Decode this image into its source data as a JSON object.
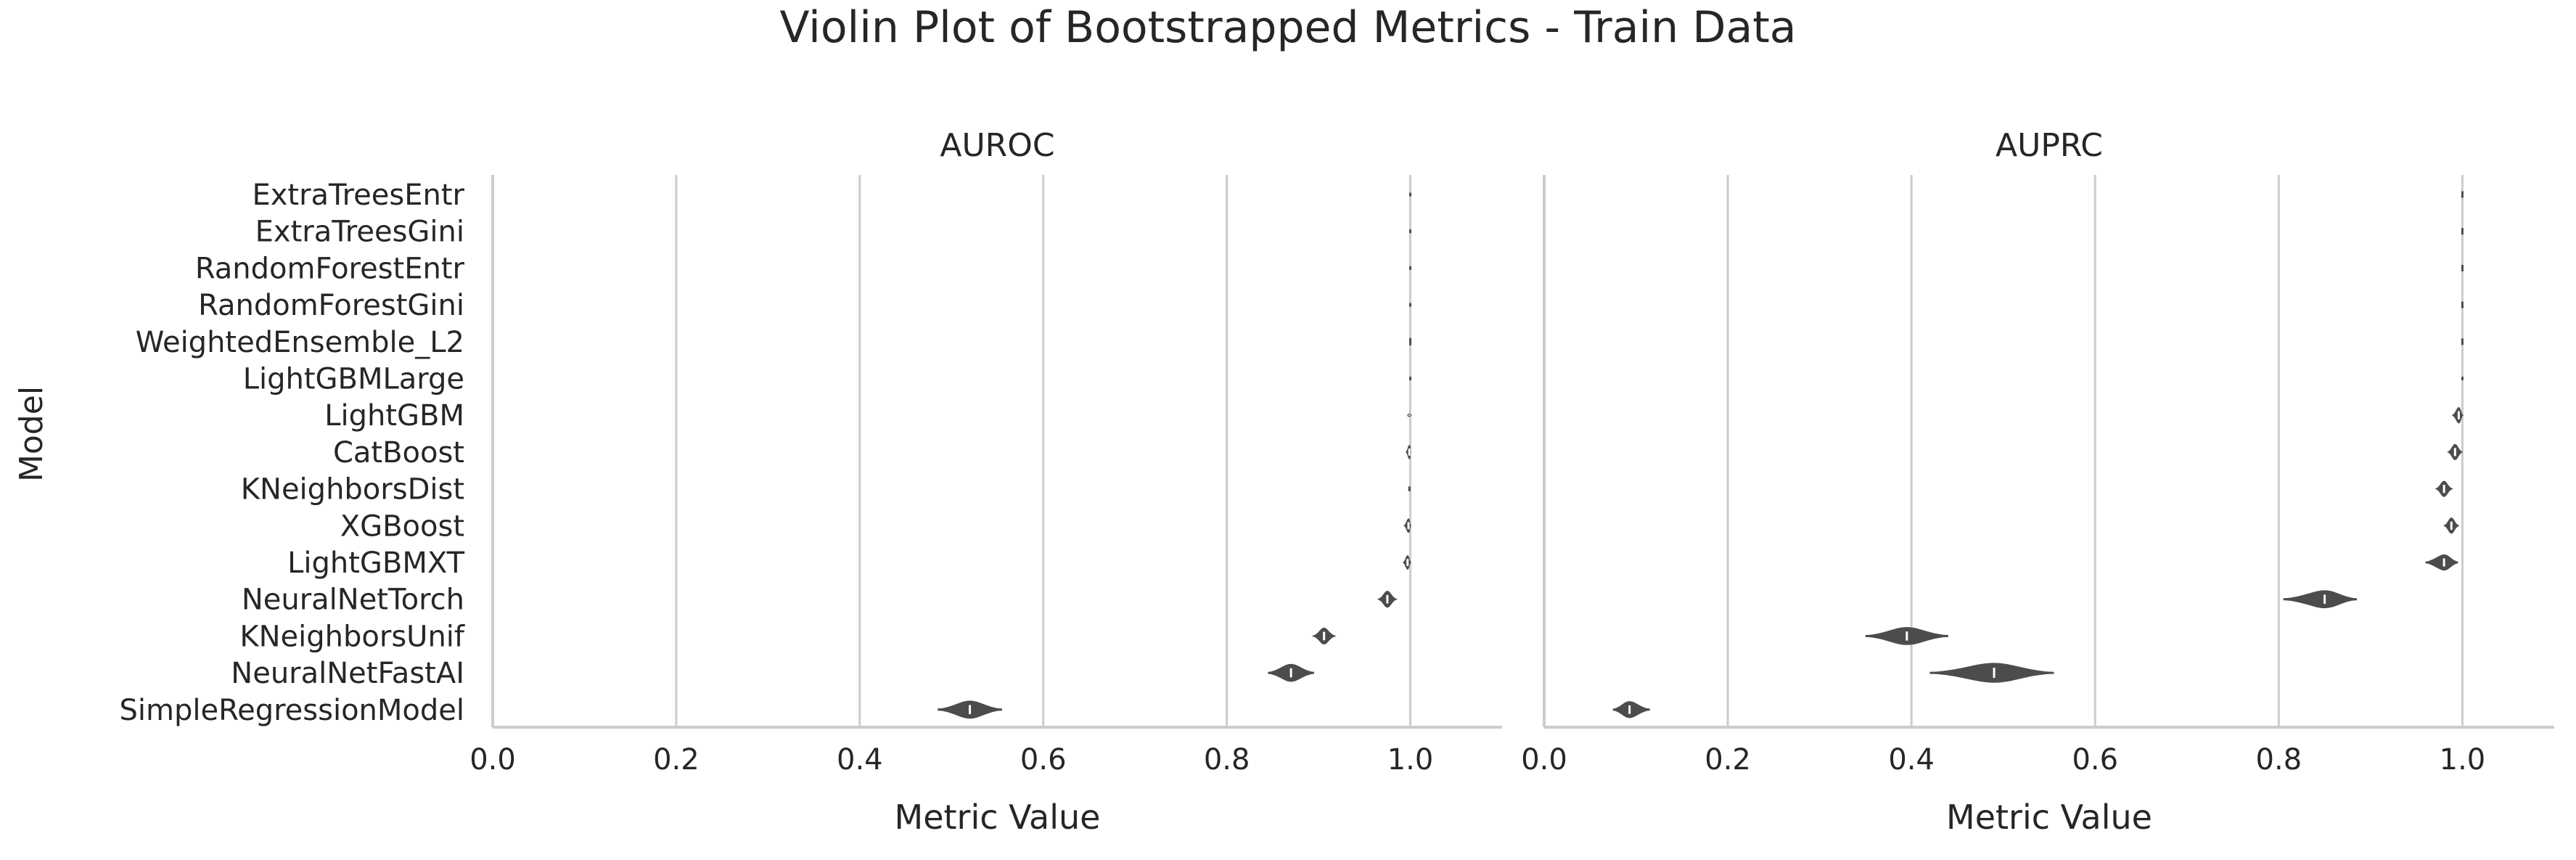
{
  "chart_data": {
    "type": "violin",
    "title": "Violin Plot of Bootstrapped Metrics - Train Data",
    "ylabel": "Model",
    "xlabel": "Metric Value",
    "xlim": [
      0.0,
      1.1
    ],
    "xticks": [
      0.0,
      0.2,
      0.4,
      0.6,
      0.8,
      1.0
    ],
    "xtick_labels": [
      "0.0",
      "0.2",
      "0.4",
      "0.6",
      "0.8",
      "1.0"
    ],
    "grid": "vertical",
    "colors": {
      "violin": "#4c4c4c",
      "grid": "#cccccc",
      "axis": "#cccccc",
      "text": "#262626"
    },
    "categories": [
      "ExtraTreesEntr",
      "ExtraTreesGini",
      "RandomForestEntr",
      "RandomForestGini",
      "WeightedEnsemble_L2",
      "LightGBMLarge",
      "LightGBM",
      "CatBoost",
      "KNeighborsDist",
      "XGBoost",
      "LightGBMXT",
      "NeuralNetTorch",
      "KNeighborsUnif",
      "NeuralNetFastAI",
      "SimpleRegressionModel"
    ],
    "panels": [
      {
        "title": "AUROC",
        "series": [
          {
            "center": 1.0,
            "min": 1.0,
            "max": 1.0,
            "width": 0.02
          },
          {
            "center": 1.0,
            "min": 1.0,
            "max": 1.0,
            "width": 0.02
          },
          {
            "center": 1.0,
            "min": 1.0,
            "max": 1.0,
            "width": 0.02
          },
          {
            "center": 1.0,
            "min": 1.0,
            "max": 1.0,
            "width": 0.02
          },
          {
            "center": 1.0,
            "min": 0.999,
            "max": 1.0,
            "width": 0.12
          },
          {
            "center": 1.0,
            "min": 1.0,
            "max": 1.0,
            "width": 0.02
          },
          {
            "center": 0.999,
            "min": 0.997,
            "max": 1.0,
            "width": 0.05
          },
          {
            "center": 0.999,
            "min": 0.996,
            "max": 1.0,
            "width": 0.35
          },
          {
            "center": 0.999,
            "min": 0.998,
            "max": 1.0,
            "width": 0.05
          },
          {
            "center": 0.998,
            "min": 0.994,
            "max": 1.0,
            "width": 0.35
          },
          {
            "center": 0.997,
            "min": 0.993,
            "max": 1.0,
            "width": 0.35
          },
          {
            "center": 0.975,
            "min": 0.966,
            "max": 0.984,
            "width": 0.42
          },
          {
            "center": 0.906,
            "min": 0.895,
            "max": 0.917,
            "width": 0.42
          },
          {
            "center": 0.87,
            "min": 0.845,
            "max": 0.895,
            "width": 0.45
          },
          {
            "center": 0.52,
            "min": 0.485,
            "max": 0.555,
            "width": 0.45
          }
        ]
      },
      {
        "title": "AUPRC",
        "series": [
          {
            "center": 1.0,
            "min": 0.999,
            "max": 1.0,
            "width": 0.1
          },
          {
            "center": 1.0,
            "min": 0.999,
            "max": 1.0,
            "width": 0.1
          },
          {
            "center": 1.0,
            "min": 0.999,
            "max": 1.0,
            "width": 0.1
          },
          {
            "center": 1.0,
            "min": 0.999,
            "max": 1.0,
            "width": 0.1
          },
          {
            "center": 1.0,
            "min": 0.999,
            "max": 1.0,
            "width": 0.1
          },
          {
            "center": 1.0,
            "min": 1.0,
            "max": 1.0,
            "width": 0.02
          },
          {
            "center": 0.996,
            "min": 0.99,
            "max": 1.0,
            "width": 0.4
          },
          {
            "center": 0.992,
            "min": 0.985,
            "max": 0.999,
            "width": 0.4
          },
          {
            "center": 0.98,
            "min": 0.972,
            "max": 0.988,
            "width": 0.4
          },
          {
            "center": 0.988,
            "min": 0.981,
            "max": 0.995,
            "width": 0.4
          },
          {
            "center": 0.98,
            "min": 0.96,
            "max": 0.995,
            "width": 0.4
          },
          {
            "center": 0.85,
            "min": 0.805,
            "max": 0.885,
            "width": 0.45
          },
          {
            "center": 0.395,
            "min": 0.35,
            "max": 0.44,
            "width": 0.45
          },
          {
            "center": 0.49,
            "min": 0.42,
            "max": 0.555,
            "width": 0.5
          },
          {
            "center": 0.093,
            "min": 0.075,
            "max": 0.115,
            "width": 0.42
          }
        ]
      }
    ]
  }
}
